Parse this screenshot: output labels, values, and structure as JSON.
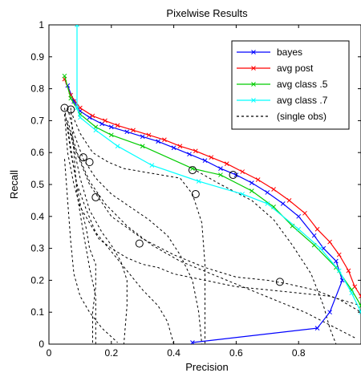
{
  "chart_data": {
    "type": "line",
    "title": "Pixelwise Results",
    "xlabel": "Precision",
    "ylabel": "Recall",
    "xlim": [
      0,
      1
    ],
    "ylim": [
      0,
      1
    ],
    "xticks": [
      0,
      0.2,
      0.4,
      0.6,
      0.8
    ],
    "yticks": [
      0,
      0.1,
      0.2,
      0.3,
      0.4,
      0.5,
      0.6,
      0.7,
      0.8,
      0.9,
      1
    ],
    "grid": false,
    "legend_position": "top-right",
    "series": [
      {
        "name": "bayes",
        "color": "#0000ff",
        "style": "solid",
        "marker": "x",
        "points": [
          [
            0.06,
            0.81
          ],
          [
            0.08,
            0.76
          ],
          [
            0.1,
            0.73
          ],
          [
            0.13,
            0.71
          ],
          [
            0.17,
            0.69
          ],
          [
            0.2,
            0.68
          ],
          [
            0.25,
            0.665
          ],
          [
            0.3,
            0.65
          ],
          [
            0.35,
            0.635
          ],
          [
            0.4,
            0.615
          ],
          [
            0.45,
            0.595
          ],
          [
            0.5,
            0.575
          ],
          [
            0.55,
            0.55
          ],
          [
            0.6,
            0.53
          ],
          [
            0.65,
            0.505
          ],
          [
            0.7,
            0.475
          ],
          [
            0.75,
            0.44
          ],
          [
            0.8,
            0.4
          ],
          [
            0.85,
            0.34
          ],
          [
            0.88,
            0.3
          ],
          [
            0.92,
            0.26
          ],
          [
            0.94,
            0.2
          ],
          [
            0.9,
            0.1
          ],
          [
            0.86,
            0.05
          ],
          [
            0.46,
            0.005
          ]
        ]
      },
      {
        "name": "avg post",
        "color": "#ff0000",
        "style": "solid",
        "marker": "x",
        "points": [
          [
            0.05,
            0.83
          ],
          [
            0.07,
            0.78
          ],
          [
            0.1,
            0.74
          ],
          [
            0.14,
            0.715
          ],
          [
            0.18,
            0.7
          ],
          [
            0.22,
            0.685
          ],
          [
            0.27,
            0.67
          ],
          [
            0.32,
            0.655
          ],
          [
            0.37,
            0.64
          ],
          [
            0.42,
            0.62
          ],
          [
            0.47,
            0.605
          ],
          [
            0.52,
            0.585
          ],
          [
            0.57,
            0.565
          ],
          [
            0.62,
            0.54
          ],
          [
            0.67,
            0.515
          ],
          [
            0.72,
            0.485
          ],
          [
            0.77,
            0.45
          ],
          [
            0.82,
            0.41
          ],
          [
            0.86,
            0.36
          ],
          [
            0.9,
            0.32
          ],
          [
            0.93,
            0.28
          ],
          [
            0.96,
            0.23
          ],
          [
            0.98,
            0.18
          ],
          [
            1.0,
            0.15
          ]
        ]
      },
      {
        "name": "avg class .5",
        "color": "#00cc00",
        "style": "solid",
        "marker": "x",
        "points": [
          [
            0.05,
            0.84
          ],
          [
            0.07,
            0.77
          ],
          [
            0.1,
            0.72
          ],
          [
            0.15,
            0.68
          ],
          [
            0.2,
            0.655
          ],
          [
            0.3,
            0.62
          ],
          [
            0.46,
            0.55
          ],
          [
            0.55,
            0.53
          ],
          [
            0.65,
            0.48
          ],
          [
            0.72,
            0.43
          ],
          [
            0.78,
            0.37
          ],
          [
            0.85,
            0.31
          ],
          [
            0.92,
            0.24
          ],
          [
            0.97,
            0.17
          ],
          [
            1.0,
            0.12
          ]
        ]
      },
      {
        "name": "avg class .7",
        "color": "#00ffff",
        "style": "solid",
        "marker": "x",
        "points": [
          [
            0.09,
            1.0
          ],
          [
            0.09,
            0.74
          ],
          [
            0.1,
            0.71
          ],
          [
            0.15,
            0.67
          ],
          [
            0.22,
            0.62
          ],
          [
            0.33,
            0.56
          ],
          [
            0.48,
            0.51
          ],
          [
            0.62,
            0.47
          ],
          [
            0.7,
            0.44
          ],
          [
            0.8,
            0.36
          ],
          [
            0.87,
            0.3
          ],
          [
            0.93,
            0.23
          ],
          [
            0.97,
            0.16
          ],
          [
            1.0,
            0.1
          ]
        ]
      },
      {
        "name": "(single obs)",
        "color": "#000000",
        "style": "dashed",
        "marker": "none",
        "lines": [
          [
            [
              0.05,
              0.58
            ],
            [
              0.06,
              0.45
            ],
            [
              0.07,
              0.32
            ],
            [
              0.08,
              0.22
            ],
            [
              0.1,
              0.15
            ],
            [
              0.13,
              0.1
            ],
            [
              0.17,
              0.05
            ],
            [
              0.22,
              0.005
            ]
          ],
          [
            [
              0.07,
              0.74
            ],
            [
              0.08,
              0.6
            ],
            [
              0.09,
              0.47
            ],
            [
              0.11,
              0.35
            ],
            [
              0.13,
              0.24
            ],
            [
              0.15,
              0.15
            ],
            [
              0.15,
              0.08
            ],
            [
              0.15,
              0.0
            ]
          ],
          [
            [
              0.05,
              0.74
            ],
            [
              0.07,
              0.6
            ],
            [
              0.09,
              0.5
            ],
            [
              0.12,
              0.42
            ],
            [
              0.15,
              0.35
            ],
            [
              0.2,
              0.29
            ],
            [
              0.25,
              0.23
            ],
            [
              0.3,
              0.17
            ],
            [
              0.35,
              0.12
            ],
            [
              0.38,
              0.07
            ],
            [
              0.4,
              0.0
            ]
          ],
          [
            [
              0.06,
              0.74
            ],
            [
              0.08,
              0.66
            ],
            [
              0.11,
              0.58
            ],
            [
              0.15,
              0.52
            ],
            [
              0.2,
              0.47
            ],
            [
              0.26,
              0.43
            ],
            [
              0.32,
              0.39
            ],
            [
              0.38,
              0.34
            ],
            [
              0.42,
              0.28
            ],
            [
              0.46,
              0.2
            ],
            [
              0.48,
              0.1
            ],
            [
              0.49,
              0.0
            ]
          ],
          [
            [
              0.07,
              0.73
            ],
            [
              0.1,
              0.66
            ],
            [
              0.14,
              0.6
            ],
            [
              0.19,
              0.57
            ],
            [
              0.24,
              0.55
            ],
            [
              0.3,
              0.54
            ],
            [
              0.36,
              0.53
            ],
            [
              0.42,
              0.52
            ],
            [
              0.46,
              0.47
            ],
            [
              0.49,
              0.38
            ],
            [
              0.5,
              0.25
            ],
            [
              0.5,
              0.1
            ],
            [
              0.5,
              0.0
            ]
          ],
          [
            [
              0.05,
              0.72
            ],
            [
              0.08,
              0.62
            ],
            [
              0.13,
              0.5
            ],
            [
              0.2,
              0.4
            ],
            [
              0.3,
              0.33
            ],
            [
              0.4,
              0.28
            ],
            [
              0.5,
              0.24
            ],
            [
              0.6,
              0.21
            ],
            [
              0.7,
              0.2
            ],
            [
              0.76,
              0.19
            ],
            [
              0.85,
              0.17
            ],
            [
              0.93,
              0.14
            ],
            [
              1.0,
              0.1
            ]
          ],
          [
            [
              0.06,
              0.7
            ],
            [
              0.09,
              0.6
            ],
            [
              0.13,
              0.51
            ],
            [
              0.18,
              0.44
            ],
            [
              0.25,
              0.37
            ],
            [
              0.33,
              0.31
            ],
            [
              0.42,
              0.26
            ],
            [
              0.52,
              0.22
            ],
            [
              0.62,
              0.18
            ],
            [
              0.72,
              0.14
            ],
            [
              0.82,
              0.1
            ],
            [
              0.92,
              0.05
            ],
            [
              0.98,
              0.02
            ]
          ],
          [
            [
              0.05,
              0.72
            ],
            [
              0.06,
              0.6
            ],
            [
              0.08,
              0.5
            ],
            [
              0.1,
              0.43
            ],
            [
              0.13,
              0.38
            ],
            [
              0.16,
              0.33
            ],
            [
              0.2,
              0.3
            ],
            [
              0.25,
              0.27
            ],
            [
              0.3,
              0.25
            ],
            [
              0.35,
              0.24
            ],
            [
              0.4,
              0.22
            ],
            [
              0.5,
              0.2
            ],
            [
              0.6,
              0.18
            ],
            [
              0.7,
              0.17
            ],
            [
              0.8,
              0.16
            ],
            [
              0.9,
              0.15
            ],
            [
              1.0,
              0.12
            ]
          ],
          [
            [
              0.06,
              0.68
            ],
            [
              0.08,
              0.55
            ],
            [
              0.1,
              0.44
            ],
            [
              0.12,
              0.36
            ],
            [
              0.13,
              0.3
            ],
            [
              0.15,
              0.25
            ],
            [
              0.15,
              0.18
            ],
            [
              0.14,
              0.1
            ],
            [
              0.14,
              0.0
            ]
          ],
          [
            [
              0.07,
              0.66
            ],
            [
              0.1,
              0.52
            ],
            [
              0.13,
              0.42
            ],
            [
              0.17,
              0.35
            ],
            [
              0.2,
              0.31
            ],
            [
              0.23,
              0.26
            ],
            [
              0.25,
              0.2
            ],
            [
              0.25,
              0.12
            ],
            [
              0.24,
              0.0
            ]
          ],
          [
            [
              0.46,
              0.55
            ],
            [
              0.55,
              0.5
            ],
            [
              0.65,
              0.45
            ],
            [
              0.72,
              0.39
            ],
            [
              0.78,
              0.31
            ],
            [
              0.84,
              0.22
            ],
            [
              0.88,
              0.12
            ],
            [
              0.9,
              0.05
            ],
            [
              0.92,
              0.0
            ]
          ]
        ],
        "circles": [
          [
            0.05,
            0.74
          ],
          [
            0.07,
            0.735
          ],
          [
            0.11,
            0.585
          ],
          [
            0.13,
            0.57
          ],
          [
            0.15,
            0.46
          ],
          [
            0.29,
            0.315
          ],
          [
            0.47,
            0.47
          ],
          [
            0.46,
            0.545
          ],
          [
            0.59,
            0.53
          ],
          [
            0.74,
            0.195
          ]
        ]
      }
    ]
  }
}
